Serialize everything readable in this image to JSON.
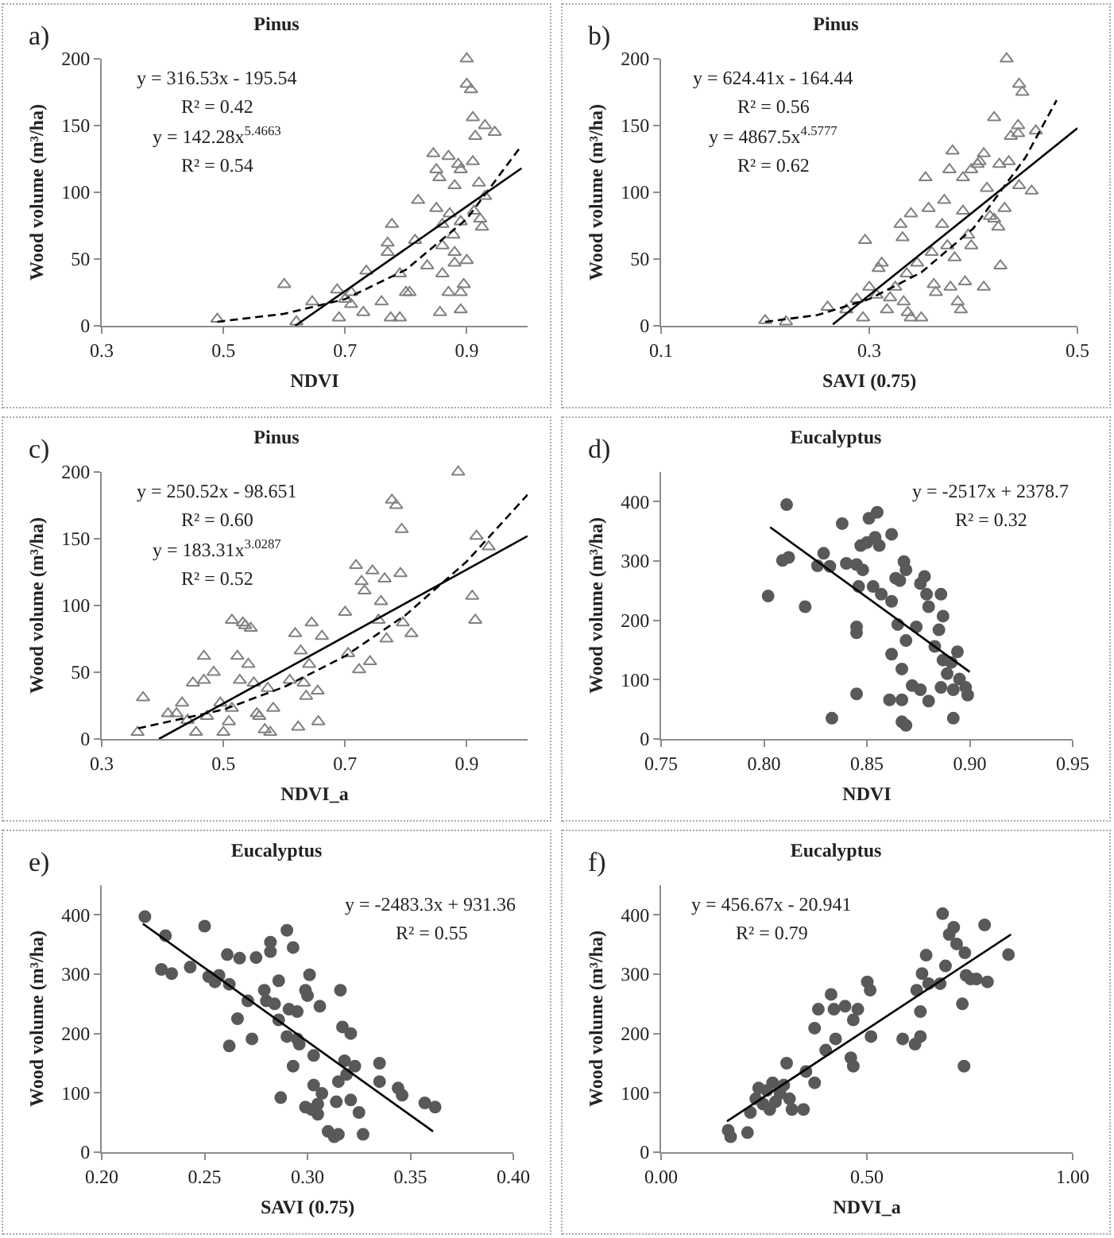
{
  "chart_data": [
    {
      "type": "scatter",
      "title": "Pinus",
      "xlabel": "NDVI",
      "ylabel": "Wood volume (m³/ha)",
      "xlim": [
        0.3,
        1.0
      ],
      "xticks": [
        0.3,
        0.5,
        0.7,
        0.9
      ],
      "ylim": [
        0,
        200
      ],
      "yticks": [
        0,
        50,
        100,
        150,
        200
      ],
      "annotations": [
        "a)",
        "y = 316.53x - 195.54",
        "R² = 0.42",
        "y = 142.28x$^{5.4663}$",
        "R² = 0.54"
      ],
      "series": [
        {
          "type": "scatter",
          "marker": "triangle",
          "color": "#808080",
          "x": [
            0.49,
            0.6,
            0.62,
            0.646,
            0.687,
            0.69,
            0.7,
            0.71,
            0.71,
            0.73,
            0.735,
            0.76,
            0.77,
            0.77,
            0.777,
            0.775,
            0.79,
            0.79,
            0.8,
            0.806,
            0.82,
            0.815,
            0.835,
            0.845,
            0.85,
            0.855,
            0.85,
            0.856,
            0.86,
            0.86,
            0.86,
            0.87,
            0.87,
            0.872,
            0.878,
            0.88,
            0.88,
            0.88,
            0.886,
            0.89,
            0.89,
            0.89,
            0.89,
            0.895,
            0.9,
            0.9,
            0.907,
            0.9,
            0.91,
            0.912,
            0.91,
            0.914,
            0.92,
            0.922,
            0.925,
            0.93,
            0.946,
            0.93
          ],
          "values": [
            5,
            31,
            3,
            18,
            27,
            6,
            20,
            25,
            16,
            10,
            41,
            18,
            55,
            62,
            76,
            6,
            6,
            39,
            25,
            25,
            94,
            64,
            45,
            129,
            117,
            111,
            88,
            10,
            76,
            60,
            39,
            25,
            127,
            84,
            68,
            55,
            47,
            105,
            121,
            117,
            78,
            12,
            25,
            31,
            200,
            181,
            177,
            49,
            123,
            86,
            156,
            142,
            107,
            80,
            74,
            150,
            145,
            97
          ]
        },
        {
          "type": "line",
          "marker": "none",
          "line_style": "solid",
          "color": "#000000",
          "x": [
            0.618,
            0.99
          ],
          "values": [
            0,
            118
          ]
        },
        {
          "type": "line",
          "marker": "none",
          "line_style": "dashed",
          "color": "#000000",
          "x": [
            0.49,
            0.6,
            0.7,
            0.8,
            0.9,
            0.99
          ],
          "values": [
            3,
            9,
            20,
            42,
            80,
            135
          ]
        }
      ]
    },
    {
      "type": "scatter",
      "title": "Pinus",
      "xlabel": "SAVI (0.75)",
      "ylabel": "Wood volume (m³/ha)",
      "xlim": [
        0.1,
        0.5
      ],
      "xticks": [
        0.1,
        0.3,
        0.5
      ],
      "ylim": [
        0,
        200
      ],
      "yticks": [
        0,
        50,
        100,
        150,
        200
      ],
      "annotations": [
        "b)",
        "y = 624.41x - 164.44",
        "R² = 0.56",
        "y = 4867.5x$^{4.5777}$",
        "R² = 0.62"
      ],
      "series": [
        {
          "type": "scatter",
          "marker": "triangle",
          "color": "#808080",
          "x": [
            0.2,
            0.22,
            0.26,
            0.278,
            0.288,
            0.296,
            0.294,
            0.3,
            0.307,
            0.309,
            0.312,
            0.317,
            0.32,
            0.325,
            0.33,
            0.332,
            0.333,
            0.336,
            0.337,
            0.34,
            0.34,
            0.346,
            0.35,
            0.354,
            0.357,
            0.36,
            0.362,
            0.364,
            0.37,
            0.372,
            0.375,
            0.377,
            0.378,
            0.38,
            0.382,
            0.385,
            0.388,
            0.39,
            0.39,
            0.392,
            0.395,
            0.398,
            0.398,
            0.404,
            0.406,
            0.41,
            0.41,
            0.413,
            0.416,
            0.42,
            0.42,
            0.424,
            0.425,
            0.426,
            0.43,
            0.432,
            0.434,
            0.436,
            0.443,
            0.444,
            0.447,
            0.444,
            0.443,
            0.456,
            0.46
          ],
          "values": [
            4,
            3,
            14,
            12,
            20,
            64,
            6,
            29,
            23,
            43,
            47,
            12,
            21,
            29,
            76,
            66,
            18,
            39,
            10,
            84,
            6,
            47,
            6,
            111,
            88,
            55,
            31,
            25,
            76,
            94,
            60,
            117,
            29,
            131,
            51,
            18,
            12,
            111,
            86,
            33,
            68,
            60,
            117,
            121,
            123,
            129,
            29,
            103,
            82,
            80,
            156,
            74,
            121,
            45,
            88,
            200,
            123,
            142,
            150,
            181,
            175,
            105,
            144,
            101,
            146
          ]
        },
        {
          "type": "line",
          "marker": "none",
          "line_style": "solid",
          "color": "#000000",
          "x": [
            0.265,
            0.5
          ],
          "values": [
            1,
            148
          ]
        },
        {
          "type": "line",
          "marker": "none",
          "line_style": "dashed",
          "color": "#000000",
          "x": [
            0.2,
            0.25,
            0.3,
            0.35,
            0.4,
            0.45,
            0.48
          ],
          "values": [
            3,
            8,
            20,
            40,
            73,
            126,
            169
          ]
        }
      ]
    },
    {
      "type": "scatter",
      "title": "Pinus",
      "xlabel": "NDVI_a",
      "ylabel": "Wood volume (m³/ha)",
      "xlim": [
        0.3,
        1.0
      ],
      "xticks": [
        0.3,
        0.5,
        0.7,
        0.9
      ],
      "ylim": [
        0,
        200
      ],
      "yticks": [
        0,
        50,
        100,
        150,
        200
      ],
      "annotations": [
        "c)",
        "y = 250.52x - 98.651",
        "R² = 0.60",
        "y = 183.31x$^{3.0287}$",
        "R² = 0.52"
      ],
      "series": [
        {
          "type": "scatter",
          "marker": "triangle",
          "color": "#808080",
          "x": [
            0.359,
            0.368,
            0.409,
            0.423,
            0.432,
            0.441,
            0.45,
            0.455,
            0.468,
            0.468,
            0.473,
            0.484,
            0.495,
            0.5,
            0.509,
            0.514,
            0.514,
            0.523,
            0.527,
            0.532,
            0.536,
            0.541,
            0.545,
            0.55,
            0.555,
            0.559,
            0.568,
            0.577,
            0.582,
            0.573,
            0.609,
            0.618,
            0.623,
            0.627,
            0.632,
            0.636,
            0.641,
            0.645,
            0.655,
            0.656,
            0.662,
            0.7,
            0.705,
            0.718,
            0.723,
            0.727,
            0.732,
            0.741,
            0.745,
            0.755,
            0.759,
            0.765,
            0.768,
            0.777,
            0.784,
            0.793,
            0.791,
            0.795,
            0.809,
            0.886,
            0.909,
            0.914,
            0.916,
            0.936
          ],
          "values": [
            5,
            31,
            19,
            19,
            27,
            14,
            42,
            5,
            62,
            44,
            17,
            50,
            27,
            5,
            13,
            89,
            23,
            62,
            44,
            87,
            85,
            56,
            83,
            42,
            19,
            17,
            7,
            5,
            23,
            38,
            44,
            79,
            9,
            66,
            42,
            32,
            56,
            87,
            36,
            13,
            77,
            95,
            64,
            130,
            52,
            118,
            111,
            58,
            126,
            89,
            103,
            120,
            75,
            179,
            175,
            157,
            124,
            87,
            79,
            200,
            107,
            89,
            152,
            144
          ]
        },
        {
          "type": "line",
          "marker": "none",
          "line_style": "solid",
          "color": "#000000",
          "x": [
            0.394,
            1.0
          ],
          "values": [
            0,
            152
          ]
        },
        {
          "type": "line",
          "marker": "none",
          "line_style": "dashed",
          "color": "#000000",
          "x": [
            0.36,
            0.5,
            0.6,
            0.7,
            0.8,
            0.9,
            1.0
          ],
          "values": [
            8,
            22,
            39,
            62,
            93,
            133,
            183
          ]
        }
      ]
    },
    {
      "type": "scatter",
      "title": "Eucalyptus",
      "xlabel": "NDVI",
      "ylabel": "Wood volume (m³/ha)",
      "xlim": [
        0.75,
        0.95
      ],
      "xticks": [
        {
          "value": 0.75,
          "label": "0.75"
        },
        {
          "value": 0.8,
          "label": "0.80"
        },
        {
          "value": 0.85,
          "label": "0.85"
        },
        {
          "value": 0.9,
          "label": "0.90"
        },
        {
          "value": 0.95,
          "label": "0.95"
        }
      ],
      "ylim": [
        0,
        450
      ],
      "yticks": [
        0,
        100,
        200,
        300,
        400
      ],
      "annotations": [
        "d)",
        "y = -2517x + 2378.7",
        "R² = 0.32"
      ],
      "series": [
        {
          "type": "scatter",
          "marker": "circle",
          "color": "#595959",
          "x": [
            0.802,
            0.811,
            0.809,
            0.812,
            0.82,
            0.826,
            0.829,
            0.832,
            0.833,
            0.838,
            0.84,
            0.845,
            0.846,
            0.845,
            0.845,
            0.845,
            0.847,
            0.848,
            0.85,
            0.851,
            0.853,
            0.854,
            0.855,
            0.856,
            0.857,
            0.862,
            0.862,
            0.862,
            0.861,
            0.864,
            0.865,
            0.866,
            0.867,
            0.867,
            0.867,
            0.869,
            0.868,
            0.869,
            0.869,
            0.872,
            0.874,
            0.876,
            0.876,
            0.878,
            0.879,
            0.88,
            0.88,
            0.883,
            0.885,
            0.886,
            0.886,
            0.887,
            0.887,
            0.889,
            0.891,
            0.892,
            0.892,
            0.894,
            0.895,
            0.898,
            0.899
          ],
          "values": [
            241,
            395,
            301,
            306,
            223,
            292,
            313,
            291,
            35,
            363,
            296,
            294,
            257,
            189,
            179,
            76,
            326,
            285,
            331,
            372,
            257,
            340,
            382,
            326,
            244,
            345,
            232,
            143,
            66,
            271,
            193,
            267,
            118,
            66,
            29,
            23,
            299,
            285,
            166,
            90,
            189,
            262,
            83,
            274,
            244,
            64,
            223,
            156,
            184,
            87,
            244,
            207,
            133,
            110,
            129,
            83,
            35,
            147,
            101,
            87,
            74
          ]
        },
        {
          "type": "line",
          "marker": "none",
          "line_style": "solid",
          "color": "#000000",
          "x": [
            0.803,
            0.9
          ],
          "values": [
            357,
            113
          ]
        }
      ]
    },
    {
      "type": "scatter",
      "title": "Eucalyptus",
      "xlabel": "SAVI (0.75)",
      "ylabel": "Wood volume (m³/ha)",
      "xlim": [
        0.2,
        0.4
      ],
      "xticks": [
        {
          "value": 0.2,
          "label": "0.20"
        },
        {
          "value": 0.25,
          "label": "0.25"
        },
        {
          "value": 0.3,
          "label": "0.30"
        },
        {
          "value": 0.35,
          "label": "0.35"
        },
        {
          "value": 0.4,
          "label": "0.40"
        }
      ],
      "ylim": [
        0,
        450
      ],
      "yticks": [
        0,
        100,
        200,
        300,
        400
      ],
      "annotations": [
        "e)",
        "y = -2483.3x + 931.36",
        "R² = 0.55"
      ],
      "series": [
        {
          "type": "scatter",
          "marker": "circle",
          "color": "#595959",
          "x": [
            0.221,
            0.229,
            0.231,
            0.234,
            0.243,
            0.25,
            0.252,
            0.255,
            0.257,
            0.261,
            0.262,
            0.262,
            0.266,
            0.267,
            0.271,
            0.273,
            0.275,
            0.279,
            0.28,
            0.282,
            0.282,
            0.284,
            0.286,
            0.286,
            0.287,
            0.29,
            0.29,
            0.291,
            0.293,
            0.293,
            0.295,
            0.295,
            0.296,
            0.299,
            0.299,
            0.3,
            0.301,
            0.302,
            0.303,
            0.303,
            0.305,
            0.305,
            0.306,
            0.307,
            0.31,
            0.313,
            0.314,
            0.315,
            0.315,
            0.316,
            0.317,
            0.318,
            0.319,
            0.321,
            0.321,
            0.323,
            0.325,
            0.327,
            0.335,
            0.335,
            0.344,
            0.346,
            0.357,
            0.362
          ],
          "values": [
            397,
            308,
            365,
            301,
            312,
            381,
            296,
            287,
            298,
            333,
            179,
            283,
            225,
            327,
            255,
            191,
            328,
            273,
            255,
            354,
            338,
            250,
            289,
            223,
            92,
            374,
            195,
            241,
            145,
            345,
            237,
            191,
            182,
            76,
            273,
            264,
            299,
            72,
            163,
            113,
            81,
            64,
            246,
            99,
            35,
            26,
            85,
            30,
            119,
            273,
            211,
            154,
            131,
            200,
            88,
            145,
            67,
            30,
            119,
            150,
            108,
            96,
            83,
            76
          ]
        },
        {
          "type": "line",
          "marker": "none",
          "line_style": "solid",
          "color": "#000000",
          "x": [
            0.22,
            0.361
          ],
          "values": [
            385,
            35
          ]
        }
      ]
    },
    {
      "type": "scatter",
      "title": "Eucalyptus",
      "xlabel": "NDVI_a",
      "ylabel": "Wood volume (m³/ha)",
      "xlim": [
        0,
        1
      ],
      "xticks": [
        {
          "value": 0,
          "label": "0.00"
        },
        {
          "value": 0.5,
          "label": "0.50"
        },
        {
          "value": 1,
          "label": "1.00"
        }
      ],
      "ylim": [
        0,
        450
      ],
      "yticks": [
        0,
        100,
        200,
        300,
        400
      ],
      "annotations": [
        "f)",
        "y = 456.67x - 20.941",
        "R² = 0.79"
      ],
      "series": [
        {
          "type": "scatter",
          "marker": "circle",
          "color": "#595959",
          "x": [
            0.163,
            0.169,
            0.21,
            0.217,
            0.23,
            0.237,
            0.248,
            0.257,
            0.264,
            0.271,
            0.278,
            0.289,
            0.298,
            0.305,
            0.312,
            0.318,
            0.346,
            0.352,
            0.373,
            0.373,
            0.382,
            0.4,
            0.413,
            0.42,
            0.424,
            0.447,
            0.461,
            0.467,
            0.467,
            0.478,
            0.501,
            0.508,
            0.51,
            0.587,
            0.617,
            0.621,
            0.63,
            0.63,
            0.634,
            0.644,
            0.65,
            0.678,
            0.684,
            0.691,
            0.7,
            0.711,
            0.718,
            0.732,
            0.736,
            0.738,
            0.741,
            0.752,
            0.766,
            0.786,
            0.793,
            0.844
          ],
          "values": [
            37,
            26,
            33,
            67,
            90,
            108,
            81,
            104,
            72,
            117,
            85,
            99,
            113,
            150,
            90,
            72,
            72,
            136,
            117,
            209,
            241,
            172,
            266,
            241,
            191,
            246,
            159,
            145,
            223,
            241,
            287,
            273,
            195,
            191,
            182,
            273,
            195,
            237,
            301,
            332,
            284,
            284,
            402,
            314,
            367,
            379,
            351,
            250,
            145,
            336,
            298,
            292,
            292,
            383,
            287,
            333
          ]
        },
        {
          "type": "line",
          "marker": "none",
          "line_style": "solid",
          "color": "#000000",
          "x": [
            0.16,
            0.85
          ],
          "values": [
            52,
            367
          ]
        }
      ]
    }
  ]
}
